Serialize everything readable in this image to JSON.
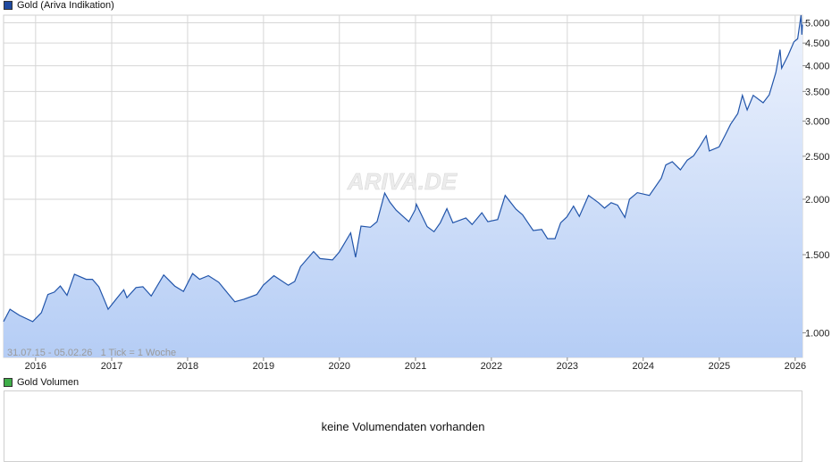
{
  "price_legend": {
    "label": "Gold (Ariva Indikation)",
    "color": "#1f4aa0"
  },
  "volume_legend": {
    "label": "Gold Volumen",
    "color": "#3fae49"
  },
  "watermark": "ARIVA.DE",
  "range_info": "31.07.15 - 05.02.26   1 Tick = 1 Woche",
  "volume_message": "keine Volumendaten vorhanden",
  "colors": {
    "line": "#2255aa",
    "fill_top": "#eef3fd",
    "fill_bottom": "#b5cdf5",
    "grid": "#d6d6d6"
  },
  "chart_data": {
    "type": "area",
    "title": "Gold (Ariva Indikation)",
    "y_scale": "log",
    "ylim": [
      880,
      5200
    ],
    "xlim": [
      "2015-07-31",
      "2026-02-05"
    ],
    "grid": true,
    "x_ticks": [
      "2016",
      "2017",
      "2018",
      "2019",
      "2020",
      "2021",
      "2022",
      "2023",
      "2024",
      "2025",
      "2026"
    ],
    "y_ticks": [
      {
        "value": 1000,
        "label": "1.000"
      },
      {
        "value": 1500,
        "label": "1.500"
      },
      {
        "value": 2000,
        "label": "2.000"
      },
      {
        "value": 2500,
        "label": "2.500"
      },
      {
        "value": 3000,
        "label": "3.000"
      },
      {
        "value": 3500,
        "label": "3.500"
      },
      {
        "value": 4000,
        "label": "4.000"
      },
      {
        "value": 4500,
        "label": "4.500"
      },
      {
        "value": 5000,
        "label": "5.000"
      }
    ],
    "series": [
      {
        "name": "Gold (Ariva Indikation)",
        "points": [
          [
            "2015-07-31",
            1060
          ],
          [
            "2015-08-31",
            1130
          ],
          [
            "2015-10-15",
            1095
          ],
          [
            "2015-12-18",
            1060
          ],
          [
            "2016-01-29",
            1110
          ],
          [
            "2016-02-29",
            1220
          ],
          [
            "2016-03-31",
            1235
          ],
          [
            "2016-04-29",
            1275
          ],
          [
            "2016-05-31",
            1215
          ],
          [
            "2016-07-06",
            1355
          ],
          [
            "2016-08-31",
            1320
          ],
          [
            "2016-09-30",
            1320
          ],
          [
            "2016-10-31",
            1270
          ],
          [
            "2016-11-30",
            1175
          ],
          [
            "2016-12-15",
            1130
          ],
          [
            "2017-01-31",
            1205
          ],
          [
            "2017-02-28",
            1250
          ],
          [
            "2017-03-15",
            1200
          ],
          [
            "2017-04-28",
            1265
          ],
          [
            "2017-05-31",
            1270
          ],
          [
            "2017-07-10",
            1210
          ],
          [
            "2017-09-08",
            1350
          ],
          [
            "2017-10-31",
            1275
          ],
          [
            "2017-12-12",
            1240
          ],
          [
            "2018-01-25",
            1360
          ],
          [
            "2018-02-28",
            1320
          ],
          [
            "2018-04-11",
            1345
          ],
          [
            "2018-05-31",
            1300
          ],
          [
            "2018-06-29",
            1250
          ],
          [
            "2018-08-16",
            1175
          ],
          [
            "2018-09-28",
            1190
          ],
          [
            "2018-11-30",
            1220
          ],
          [
            "2018-12-31",
            1280
          ],
          [
            "2019-02-20",
            1345
          ],
          [
            "2019-04-30",
            1280
          ],
          [
            "2019-05-31",
            1305
          ],
          [
            "2019-06-28",
            1410
          ],
          [
            "2019-08-30",
            1525
          ],
          [
            "2019-09-30",
            1470
          ],
          [
            "2019-11-29",
            1460
          ],
          [
            "2019-12-31",
            1520
          ],
          [
            "2020-02-24",
            1680
          ],
          [
            "2020-03-19",
            1480
          ],
          [
            "2020-04-14",
            1740
          ],
          [
            "2020-05-29",
            1730
          ],
          [
            "2020-06-30",
            1780
          ],
          [
            "2020-08-06",
            2065
          ],
          [
            "2020-08-31",
            1970
          ],
          [
            "2020-09-30",
            1890
          ],
          [
            "2020-11-30",
            1780
          ],
          [
            "2020-12-31",
            1895
          ],
          [
            "2021-01-05",
            1950
          ],
          [
            "2021-02-26",
            1735
          ],
          [
            "2021-03-31",
            1690
          ],
          [
            "2021-04-30",
            1770
          ],
          [
            "2021-06-01",
            1905
          ],
          [
            "2021-06-30",
            1770
          ],
          [
            "2021-08-31",
            1815
          ],
          [
            "2021-09-30",
            1755
          ],
          [
            "2021-11-16",
            1865
          ],
          [
            "2021-12-15",
            1780
          ],
          [
            "2022-01-31",
            1800
          ],
          [
            "2022-03-08",
            2040
          ],
          [
            "2022-04-29",
            1900
          ],
          [
            "2022-05-31",
            1845
          ],
          [
            "2022-07-21",
            1700
          ],
          [
            "2022-08-31",
            1710
          ],
          [
            "2022-09-28",
            1630
          ],
          [
            "2022-11-03",
            1630
          ],
          [
            "2022-11-30",
            1770
          ],
          [
            "2022-12-30",
            1825
          ],
          [
            "2023-01-31",
            1930
          ],
          [
            "2023-02-28",
            1830
          ],
          [
            "2023-04-13",
            2040
          ],
          [
            "2023-05-31",
            1965
          ],
          [
            "2023-06-29",
            1910
          ],
          [
            "2023-07-31",
            1965
          ],
          [
            "2023-08-31",
            1940
          ],
          [
            "2023-10-05",
            1820
          ],
          [
            "2023-10-27",
            2000
          ],
          [
            "2023-12-04",
            2070
          ],
          [
            "2024-01-31",
            2040
          ],
          [
            "2024-03-28",
            2230
          ],
          [
            "2024-04-19",
            2390
          ],
          [
            "2024-05-20",
            2430
          ],
          [
            "2024-06-28",
            2330
          ],
          [
            "2024-07-31",
            2450
          ],
          [
            "2024-08-30",
            2505
          ],
          [
            "2024-09-30",
            2635
          ],
          [
            "2024-10-30",
            2780
          ],
          [
            "2024-11-14",
            2570
          ],
          [
            "2024-12-31",
            2625
          ],
          [
            "2025-01-31",
            2800
          ],
          [
            "2025-02-24",
            2950
          ],
          [
            "2025-03-31",
            3120
          ],
          [
            "2025-04-22",
            3430
          ],
          [
            "2025-05-15",
            3180
          ],
          [
            "2025-06-13",
            3430
          ],
          [
            "2025-07-31",
            3300
          ],
          [
            "2025-08-29",
            3440
          ],
          [
            "2025-09-30",
            3860
          ],
          [
            "2025-10-20",
            4350
          ],
          [
            "2025-10-28",
            3950
          ],
          [
            "2025-11-28",
            4220
          ],
          [
            "2025-12-26",
            4530
          ],
          [
            "2026-01-13",
            4600
          ],
          [
            "2026-01-29",
            5350
          ],
          [
            "2026-02-02",
            4700
          ],
          [
            "2026-02-05",
            4950
          ]
        ]
      }
    ]
  }
}
